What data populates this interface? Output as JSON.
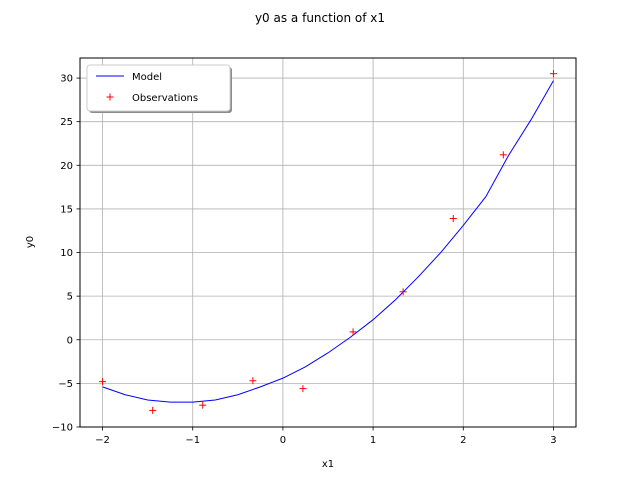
{
  "chart_data": {
    "type": "line",
    "title": "y0 as a function of x1",
    "xlabel": "x1",
    "ylabel": "y0",
    "xlim": [
      -2.25,
      3.25
    ],
    "ylim": [
      -10,
      32.3
    ],
    "xticks": [
      -2,
      -1,
      0,
      1,
      2,
      3
    ],
    "yticks": [
      -10,
      -5,
      0,
      5,
      10,
      15,
      20,
      25,
      30
    ],
    "grid": true,
    "legend_position": "top-left",
    "series": [
      {
        "name": "Model",
        "kind": "line",
        "color": "#0000ff",
        "x": [
          -2.0,
          -1.75,
          -1.5,
          -1.25,
          -1.0,
          -0.75,
          -0.5,
          -0.25,
          0.0,
          0.25,
          0.5,
          0.75,
          1.0,
          1.25,
          1.5,
          1.75,
          2.0,
          2.25,
          2.5,
          2.75,
          3.0
        ],
        "y": [
          -5.4,
          -6.3,
          -6.9,
          -7.15,
          -7.15,
          -6.9,
          -6.3,
          -5.4,
          -4.4,
          -3.1,
          -1.5,
          0.3,
          2.3,
          4.6,
          7.2,
          10.0,
          13.1,
          16.4,
          21.1,
          25.2,
          29.7
        ]
      },
      {
        "name": "Observations",
        "kind": "scatter",
        "marker": "+",
        "color": "#ff0000",
        "x": [
          -2.0,
          -1.444,
          -0.889,
          -0.333,
          0.222,
          0.778,
          1.333,
          1.889,
          2.444,
          3.0
        ],
        "y": [
          -4.8,
          -8.1,
          -7.5,
          -4.7,
          -5.6,
          0.9,
          5.5,
          13.9,
          21.2,
          30.5
        ]
      }
    ]
  }
}
